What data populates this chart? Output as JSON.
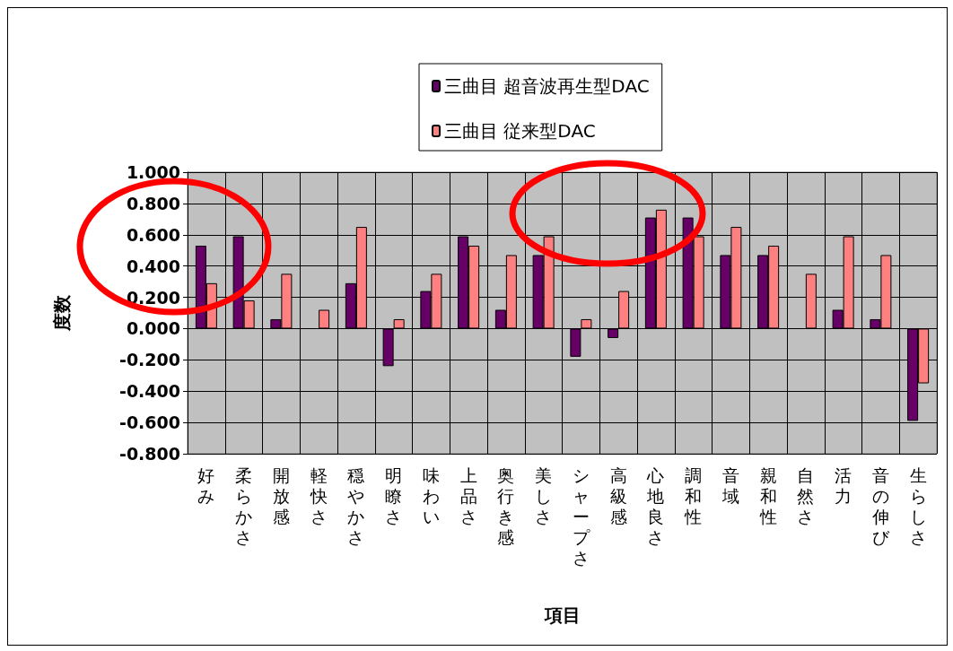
{
  "chart_data": {
    "type": "bar",
    "ylabel": "度数",
    "xlabel": "項目",
    "categories": [
      "好み",
      "柔らかさ",
      "開放感",
      "軽快さ",
      "穏やかさ",
      "明瞭さ",
      "味わい",
      "上品さ",
      "奥行き感",
      "美しさ",
      "シャープさ",
      "高級感",
      "心地良さ",
      "調和性",
      "音域",
      "親和性",
      "自然さ",
      "活力",
      "音の伸び",
      "生らしさ"
    ],
    "series": [
      {
        "name": "三曲目 超音波再生型DAC",
        "color": "#660066",
        "values": [
          0.53,
          0.59,
          0.06,
          0,
          0.29,
          -0.24,
          0.24,
          0.59,
          0.12,
          0.47,
          -0.18,
          -0.06,
          0.71,
          0.71,
          0.47,
          0.47,
          0,
          0.12,
          0.06,
          -0.59
        ]
      },
      {
        "name": "三曲目 従来型DAC",
        "color": "#ff8080",
        "values": [
          0.29,
          0.18,
          0.35,
          0.12,
          0.65,
          0.06,
          0.35,
          0.53,
          0.47,
          0.59,
          0.06,
          0.24,
          0.76,
          0.59,
          0.65,
          0.53,
          0.35,
          0.59,
          0.47,
          -0.35
        ]
      }
    ],
    "ylim": [
      -0.8,
      1.0
    ],
    "yticks": [
      {
        "value": -0.8,
        "label": "-0.800"
      },
      {
        "value": -0.6,
        "label": "-0.600"
      },
      {
        "value": -0.4,
        "label": "-0.400"
      },
      {
        "value": -0.2,
        "label": "-0.200"
      },
      {
        "value": 0,
        "label": "0.000"
      },
      {
        "value": 0.2,
        "label": "0.200"
      },
      {
        "value": 0.4,
        "label": "0.400"
      },
      {
        "value": 0.6,
        "label": "0.600"
      },
      {
        "value": 0.8,
        "label": "0.800"
      },
      {
        "value": 1.0,
        "label": "1.000"
      }
    ],
    "grid": true,
    "legend": "top"
  }
}
